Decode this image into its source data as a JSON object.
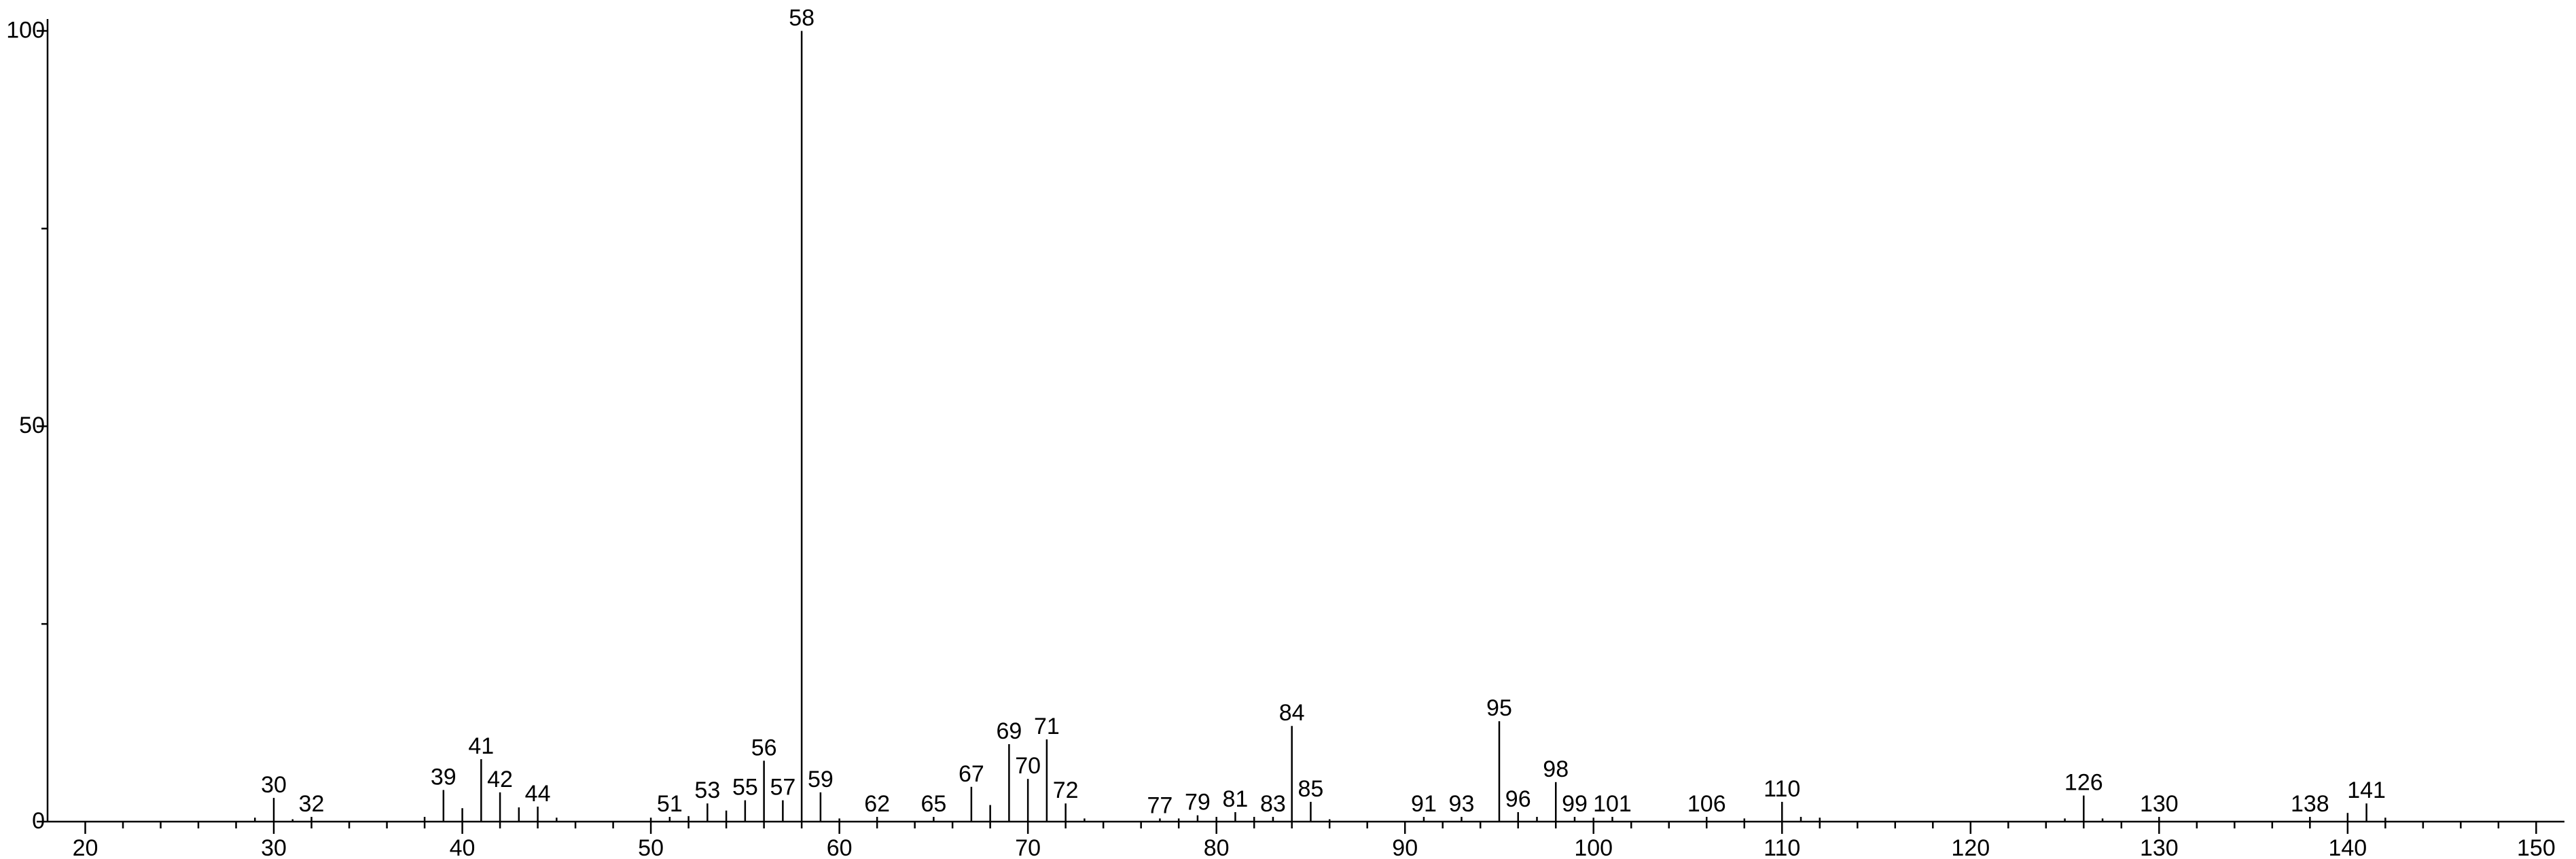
{
  "chart_data": {
    "type": "spectrum",
    "x": [
      29,
      30,
      31,
      32,
      38,
      39,
      40,
      41,
      42,
      43,
      44,
      45,
      50,
      51,
      52,
      53,
      54,
      55,
      56,
      57,
      58,
      59,
      60,
      62,
      65,
      67,
      68,
      69,
      70,
      71,
      72,
      73,
      77,
      78,
      79,
      80,
      81,
      82,
      83,
      84,
      85,
      86,
      91,
      93,
      95,
      96,
      97,
      98,
      99,
      100,
      101,
      106,
      108,
      110,
      111,
      112,
      125,
      126,
      127,
      130,
      138,
      140,
      141,
      142
    ],
    "values": [
      0.5,
      3,
      0.3,
      0.6,
      0.6,
      4,
      1.7,
      7.9,
      3.7,
      1.8,
      1.9,
      0.5,
      0.5,
      0.6,
      0.7,
      2.3,
      1.4,
      2.7,
      7.7,
      2.7,
      100,
      3.7,
      0.4,
      0.6,
      0.6,
      4.4,
      2.1,
      9.8,
      5.4,
      10.4,
      2.3,
      0.4,
      0.4,
      0.4,
      0.8,
      0.6,
      1.2,
      0.6,
      0.6,
      12.1,
      2.5,
      0.3,
      0.6,
      0.6,
      12.7,
      1.2,
      0.6,
      5,
      0.6,
      0.5,
      0.6,
      0.6,
      0.4,
      2.5,
      0.6,
      0.5,
      0.4,
      3.3,
      0.4,
      0.6,
      0.6,
      1.1,
      2.3,
      0.5
    ],
    "labels": [
      null,
      "30",
      null,
      "32",
      null,
      "39",
      null,
      "41",
      "42",
      null,
      "44",
      null,
      null,
      "51",
      null,
      "53",
      null,
      "55",
      "56",
      "57",
      "58",
      "59",
      null,
      "62",
      "65",
      "67",
      null,
      "69",
      "70",
      "71",
      "72",
      null,
      "77",
      null,
      "79",
      null,
      "81",
      null,
      "83",
      "84",
      "85",
      null,
      "91",
      "93",
      "95",
      "96",
      null,
      "98",
      "99",
      null,
      "101",
      "106",
      null,
      "110",
      null,
      null,
      null,
      "126",
      null,
      "130",
      "138",
      null,
      "141",
      null
    ],
    "color": "#000000",
    "xlim": [
      18,
      151.5
    ],
    "ylim": [
      0,
      101.5
    ],
    "xticks": [
      20,
      30,
      40,
      50,
      60,
      70,
      80,
      90,
      100,
      110,
      120,
      130,
      140,
      150
    ],
    "xminorticks": [
      22,
      24,
      26,
      28,
      32,
      34,
      36,
      38,
      42,
      44,
      46,
      48,
      52,
      54,
      56,
      58,
      62,
      64,
      66,
      68,
      72,
      74,
      76,
      78,
      82,
      84,
      86,
      88,
      92,
      94,
      96,
      98,
      102,
      104,
      106,
      108,
      112,
      114,
      116,
      118,
      122,
      124,
      126,
      128,
      132,
      134,
      136,
      138,
      142,
      144,
      146,
      148
    ],
    "yticks": [
      0,
      50,
      100
    ],
    "yminorticks": [
      25,
      75
    ]
  }
}
